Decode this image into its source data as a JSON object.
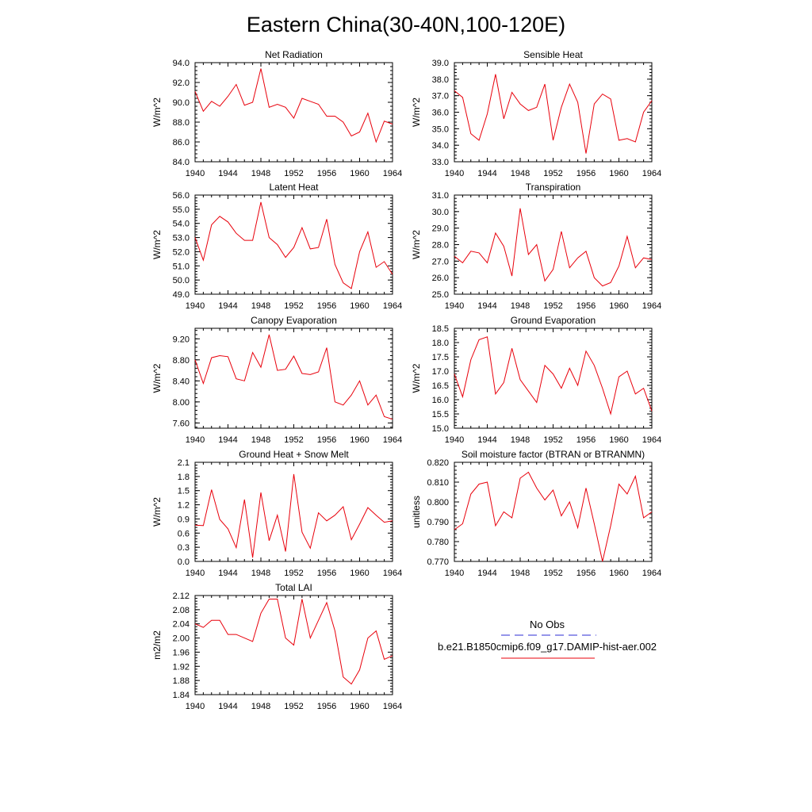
{
  "title": "Eastern China(30-40N,100-120E)",
  "colors": {
    "model": "#e8000b",
    "obs": "#2b2bd6",
    "axis": "#000000"
  },
  "legend": {
    "obs_label": "No Obs",
    "model_label": "b.e21.B1850cmip6.f09_g17.DAMIP-hist-aer.002"
  },
  "chart_data": [
    {
      "type": "line",
      "title": "Net Radiation",
      "ylabel": "W/m^2",
      "xlim": [
        1940,
        1964
      ],
      "xticks": [
        1940,
        1944,
        1948,
        1952,
        1956,
        1960,
        1964
      ],
      "ylim": [
        84.0,
        94.0
      ],
      "yticks": [
        "84.0",
        "86.0",
        "88.0",
        "90.0",
        "92.0",
        "94.0"
      ],
      "series": [
        {
          "x": [
            1940,
            1941,
            1942,
            1943,
            1944,
            1945,
            1946,
            1947,
            1948,
            1949,
            1950,
            1951,
            1952,
            1953,
            1954,
            1955,
            1956,
            1957,
            1958,
            1959,
            1960,
            1961,
            1962,
            1963,
            1964
          ],
          "values": [
            91.1,
            89.1,
            90.1,
            89.6,
            90.6,
            91.8,
            89.7,
            90.0,
            93.4,
            89.5,
            89.8,
            89.5,
            88.4,
            90.4,
            90.1,
            89.8,
            88.6,
            88.6,
            88.0,
            86.6,
            87.0,
            88.9,
            86.0,
            88.1,
            87.8
          ]
        }
      ]
    },
    {
      "type": "line",
      "title": "Sensible Heat",
      "ylabel": "W/m^2",
      "xlim": [
        1940,
        1964
      ],
      "xticks": [
        1940,
        1944,
        1948,
        1952,
        1956,
        1960,
        1964
      ],
      "ylim": [
        33.0,
        39.0
      ],
      "yticks": [
        "33.0",
        "34.0",
        "35.0",
        "36.0",
        "37.0",
        "38.0",
        "39.0"
      ],
      "series": [
        {
          "x": [
            1940,
            1941,
            1942,
            1943,
            1944,
            1945,
            1946,
            1947,
            1948,
            1949,
            1950,
            1951,
            1952,
            1953,
            1954,
            1955,
            1956,
            1957,
            1958,
            1959,
            1960,
            1961,
            1962,
            1963,
            1964
          ],
          "values": [
            37.3,
            36.9,
            34.7,
            34.3,
            35.9,
            38.3,
            35.6,
            37.2,
            36.5,
            36.1,
            36.3,
            37.7,
            34.3,
            36.3,
            37.7,
            36.6,
            33.5,
            36.5,
            37.1,
            36.8,
            34.3,
            34.4,
            34.2,
            36.0,
            36.7
          ]
        }
      ]
    },
    {
      "type": "line",
      "title": "Latent Heat",
      "ylabel": "W/m^2",
      "xlim": [
        1940,
        1964
      ],
      "xticks": [
        1940,
        1944,
        1948,
        1952,
        1956,
        1960,
        1964
      ],
      "ylim": [
        49.0,
        56.0
      ],
      "yticks": [
        "49.0",
        "50.0",
        "51.0",
        "52.0",
        "53.0",
        "54.0",
        "55.0",
        "56.0"
      ],
      "series": [
        {
          "x": [
            1940,
            1941,
            1942,
            1943,
            1944,
            1945,
            1946,
            1947,
            1948,
            1949,
            1950,
            1951,
            1952,
            1953,
            1954,
            1955,
            1956,
            1957,
            1958,
            1959,
            1960,
            1961,
            1962,
            1963,
            1964
          ],
          "values": [
            53.0,
            51.4,
            53.9,
            54.5,
            54.1,
            53.3,
            52.8,
            52.8,
            55.5,
            53.0,
            52.5,
            51.6,
            52.3,
            53.7,
            52.2,
            52.3,
            54.3,
            51.1,
            49.8,
            49.4,
            52.0,
            53.4,
            50.9,
            51.3,
            50.4
          ]
        }
      ]
    },
    {
      "type": "line",
      "title": "Transpiration",
      "ylabel": "W/m^2",
      "xlim": [
        1940,
        1964
      ],
      "xticks": [
        1940,
        1944,
        1948,
        1952,
        1956,
        1960,
        1964
      ],
      "ylim": [
        25.0,
        31.0
      ],
      "yticks": [
        "25.0",
        "26.0",
        "27.0",
        "28.0",
        "29.0",
        "30.0",
        "31.0"
      ],
      "series": [
        {
          "x": [
            1940,
            1941,
            1942,
            1943,
            1944,
            1945,
            1946,
            1947,
            1948,
            1949,
            1950,
            1951,
            1952,
            1953,
            1954,
            1955,
            1956,
            1957,
            1958,
            1959,
            1960,
            1961,
            1962,
            1963,
            1964
          ],
          "values": [
            27.3,
            26.9,
            27.6,
            27.5,
            26.9,
            28.7,
            27.9,
            26.1,
            30.2,
            27.4,
            28.0,
            25.8,
            26.5,
            28.8,
            26.6,
            27.2,
            27.6,
            26.0,
            25.5,
            25.7,
            26.7,
            28.5,
            26.6,
            27.2,
            27.1
          ]
        }
      ]
    },
    {
      "type": "line",
      "title": "Canopy Evaporation",
      "ylabel": "W/m^2",
      "xlim": [
        1940,
        1964
      ],
      "xticks": [
        1940,
        1944,
        1948,
        1952,
        1956,
        1960,
        1964
      ],
      "ylim": [
        7.5,
        9.4
      ],
      "yticks": [
        "7.60",
        "8.00",
        "8.40",
        "8.80",
        "9.20"
      ],
      "ytick_values": [
        7.6,
        8.0,
        8.4,
        8.8,
        9.2
      ],
      "series": [
        {
          "x": [
            1940,
            1941,
            1942,
            1943,
            1944,
            1945,
            1946,
            1947,
            1948,
            1949,
            1950,
            1951,
            1952,
            1953,
            1954,
            1955,
            1956,
            1957,
            1958,
            1959,
            1960,
            1961,
            1962,
            1963,
            1964
          ],
          "values": [
            8.8,
            8.35,
            8.84,
            8.88,
            8.86,
            8.44,
            8.4,
            8.94,
            8.66,
            9.28,
            8.6,
            8.62,
            8.87,
            8.54,
            8.52,
            8.57,
            9.03,
            8.0,
            7.94,
            8.13,
            8.4,
            7.94,
            8.13,
            7.72,
            7.67
          ]
        }
      ]
    },
    {
      "type": "line",
      "title": "Ground Evaporation",
      "ylabel": "W/m^2",
      "xlim": [
        1940,
        1964
      ],
      "xticks": [
        1940,
        1944,
        1948,
        1952,
        1956,
        1960,
        1964
      ],
      "ylim": [
        15.0,
        18.5
      ],
      "yticks": [
        "15.0",
        "15.5",
        "16.0",
        "16.5",
        "17.0",
        "17.5",
        "18.0",
        "18.5"
      ],
      "series": [
        {
          "x": [
            1940,
            1941,
            1942,
            1943,
            1944,
            1945,
            1946,
            1947,
            1948,
            1949,
            1950,
            1951,
            1952,
            1953,
            1954,
            1955,
            1956,
            1957,
            1958,
            1959,
            1960,
            1961,
            1962,
            1963,
            1964
          ],
          "values": [
            16.9,
            16.1,
            17.4,
            18.1,
            18.2,
            16.2,
            16.6,
            17.8,
            16.7,
            16.3,
            15.9,
            17.2,
            16.9,
            16.4,
            17.1,
            16.5,
            17.7,
            17.2,
            16.4,
            15.5,
            16.8,
            17.0,
            16.2,
            16.4,
            15.6
          ]
        }
      ]
    },
    {
      "type": "line",
      "title": "Ground Heat + Snow Melt",
      "ylabel": "W/m^2",
      "xlim": [
        1940,
        1964
      ],
      "xticks": [
        1940,
        1944,
        1948,
        1952,
        1956,
        1960,
        1964
      ],
      "ylim": [
        0.0,
        2.1
      ],
      "yticks": [
        "0.0",
        "0.3",
        "0.6",
        "0.9",
        "1.2",
        "1.5",
        "1.8",
        "2.1"
      ],
      "series": [
        {
          "x": [
            1940,
            1941,
            1942,
            1943,
            1944,
            1945,
            1946,
            1947,
            1948,
            1949,
            1950,
            1951,
            1952,
            1953,
            1954,
            1955,
            1956,
            1957,
            1958,
            1959,
            1960,
            1961,
            1962,
            1963,
            1964
          ],
          "values": [
            0.77,
            0.76,
            1.52,
            0.89,
            0.69,
            0.29,
            1.31,
            0.08,
            1.46,
            0.44,
            0.98,
            0.21,
            1.85,
            0.62,
            0.28,
            1.03,
            0.86,
            0.98,
            1.16,
            0.46,
            0.79,
            1.14,
            0.98,
            0.83,
            0.86
          ]
        }
      ]
    },
    {
      "type": "line",
      "title": "Soil moisture factor (BTRAN or BTRANMN)",
      "ylabel": "unitless",
      "xlim": [
        1940,
        1964
      ],
      "xticks": [
        1940,
        1944,
        1948,
        1952,
        1956,
        1960,
        1964
      ],
      "ylim": [
        0.77,
        0.82
      ],
      "yticks": [
        "0.770",
        "0.780",
        "0.790",
        "0.800",
        "0.810",
        "0.820"
      ],
      "series": [
        {
          "x": [
            1940,
            1941,
            1942,
            1943,
            1944,
            1945,
            1946,
            1947,
            1948,
            1949,
            1950,
            1951,
            1952,
            1953,
            1954,
            1955,
            1956,
            1957,
            1958,
            1959,
            1960,
            1961,
            1962,
            1963,
            1964
          ],
          "values": [
            0.786,
            0.789,
            0.804,
            0.809,
            0.81,
            0.788,
            0.795,
            0.792,
            0.812,
            0.815,
            0.807,
            0.801,
            0.806,
            0.793,
            0.8,
            0.787,
            0.807,
            0.789,
            0.77,
            0.788,
            0.809,
            0.804,
            0.813,
            0.792,
            0.795
          ]
        }
      ]
    },
    {
      "type": "line",
      "title": "Total LAI",
      "ylabel": "m2/m2",
      "xlim": [
        1940,
        1964
      ],
      "xticks": [
        1940,
        1944,
        1948,
        1952,
        1956,
        1960,
        1964
      ],
      "ylim": [
        1.84,
        2.12
      ],
      "yticks": [
        "1.84",
        "1.88",
        "1.92",
        "1.96",
        "2.00",
        "2.04",
        "2.08",
        "2.12"
      ],
      "series": [
        {
          "x": [
            1940,
            1941,
            1942,
            1943,
            1944,
            1945,
            1946,
            1947,
            1948,
            1949,
            1950,
            1951,
            1952,
            1953,
            1954,
            1955,
            1956,
            1957,
            1958,
            1959,
            1960,
            1961,
            1962,
            1963,
            1964
          ],
          "values": [
            2.04,
            2.03,
            2.05,
            2.05,
            2.01,
            2.01,
            2.0,
            1.99,
            2.07,
            2.11,
            2.11,
            2.0,
            1.98,
            2.11,
            2.0,
            2.05,
            2.1,
            2.02,
            1.89,
            1.87,
            1.91,
            2.0,
            2.02,
            1.94,
            1.95
          ]
        }
      ]
    }
  ]
}
